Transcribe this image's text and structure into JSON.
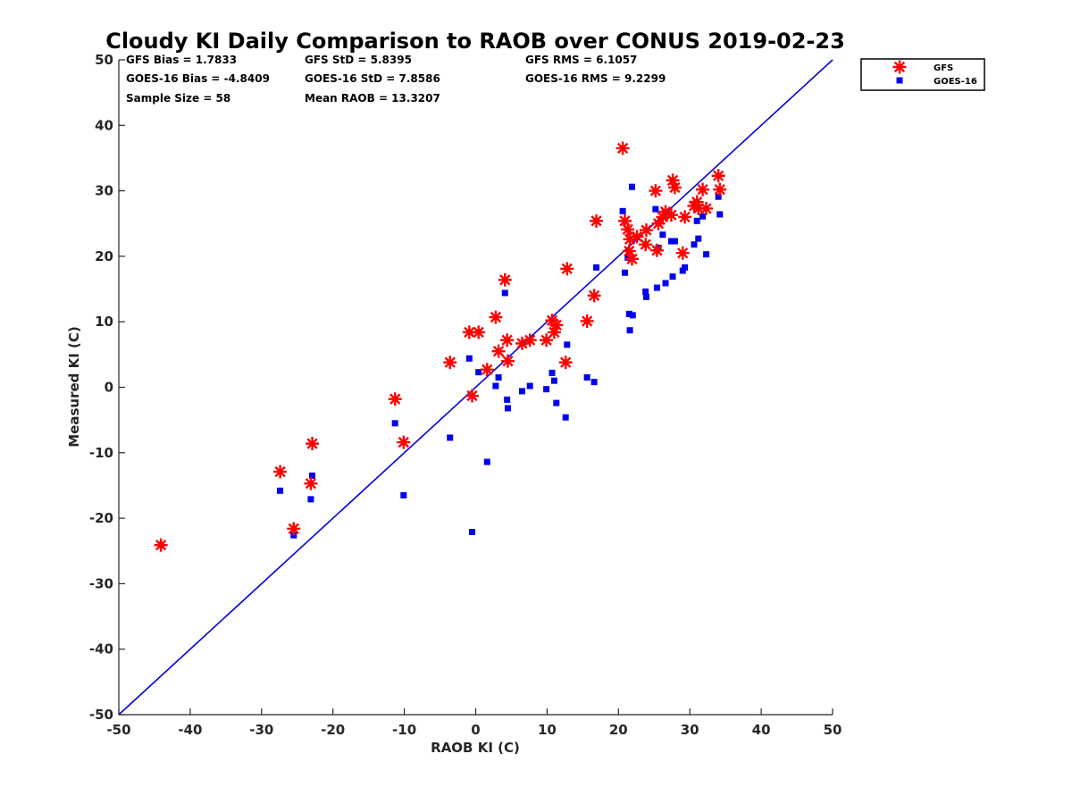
{
  "chart_data": {
    "type": "scatter",
    "title": "Cloudy KI Daily Comparison to RAOB over CONUS 2019-02-23",
    "xlabel": "RAOB KI (C)",
    "ylabel": "Measured KI (C)",
    "xlim": [
      -50,
      50
    ],
    "ylim": [
      -50,
      50
    ],
    "xticks": [
      "-50",
      "-40",
      "-30",
      "-20",
      "-10",
      "0",
      "10",
      "20",
      "30",
      "40",
      "50"
    ],
    "yticks": [
      "-50",
      "-40",
      "-30",
      "-20",
      "-10",
      "0",
      "10",
      "20",
      "30",
      "40",
      "50"
    ],
    "grid": false,
    "legend_position": "outside top-right",
    "stats": [
      "GFS Bias = 1.7833",
      "GFS StD = 5.8395",
      "GFS RMS = 6.1057",
      "GOES-16 Bias = -4.8409",
      "GOES-16 StD = 7.8586",
      "GOES-16 RMS = 9.2299",
      "Sample Size = 58",
      "Mean RAOB = 13.3207"
    ],
    "reference_line": {
      "type": "one-to-one",
      "color": "#0000dd"
    },
    "series": [
      {
        "name": "GFS",
        "marker": "asterisk",
        "color": "#ff0000",
        "points": [
          [
            -44.1,
            -24.1
          ],
          [
            -27.4,
            -12.9
          ],
          [
            -25.5,
            -21.6
          ],
          [
            -23.1,
            -14.7
          ],
          [
            -22.9,
            -8.6
          ],
          [
            -11.3,
            -1.8
          ],
          [
            -10.1,
            -8.4
          ],
          [
            -3.6,
            3.8
          ],
          [
            -0.9,
            8.4
          ],
          [
            -0.5,
            -1.3
          ],
          [
            0.4,
            8.4
          ],
          [
            1.6,
            2.7
          ],
          [
            2.8,
            10.7
          ],
          [
            3.2,
            5.5
          ],
          [
            4.1,
            16.4
          ],
          [
            4.4,
            7.2
          ],
          [
            4.5,
            4.0
          ],
          [
            6.5,
            6.7
          ],
          [
            7.6,
            7.2
          ],
          [
            9.9,
            7.2
          ],
          [
            10.7,
            10.2
          ],
          [
            11.0,
            8.4
          ],
          [
            11.3,
            9.5
          ],
          [
            12.6,
            3.8
          ],
          [
            12.8,
            18.1
          ],
          [
            15.6,
            10.1
          ],
          [
            16.6,
            14.0
          ],
          [
            16.9,
            25.4
          ],
          [
            20.6,
            36.5
          ],
          [
            20.9,
            25.4
          ],
          [
            21.3,
            24.1
          ],
          [
            21.5,
            20.8
          ],
          [
            21.6,
            22.6
          ],
          [
            21.9,
            19.6
          ],
          [
            22.6,
            23.0
          ],
          [
            23.8,
            21.8
          ],
          [
            23.9,
            24.0
          ],
          [
            25.2,
            30.0
          ],
          [
            25.4,
            20.9
          ],
          [
            25.6,
            25.0
          ],
          [
            26.2,
            26.0
          ],
          [
            26.6,
            26.8
          ],
          [
            27.4,
            26.3
          ],
          [
            27.6,
            31.6
          ],
          [
            27.9,
            30.5
          ],
          [
            29.0,
            20.5
          ],
          [
            29.3,
            26.0
          ],
          [
            30.6,
            27.7
          ],
          [
            31.0,
            28.3
          ],
          [
            31.2,
            27.3
          ],
          [
            31.8,
            30.2
          ],
          [
            32.3,
            27.3
          ],
          [
            34.0,
            32.3
          ],
          [
            34.2,
            30.2
          ]
        ]
      },
      {
        "name": "GOES-16",
        "marker": "square",
        "color": "#0000ee",
        "points": [
          [
            -44.1,
            -24.1
          ],
          [
            -27.4,
            -15.8
          ],
          [
            -25.5,
            -22.6
          ],
          [
            -23.1,
            -17.1
          ],
          [
            -22.9,
            -13.5
          ],
          [
            -11.3,
            -5.5
          ],
          [
            -10.1,
            -16.5
          ],
          [
            -3.6,
            -7.7
          ],
          [
            -0.9,
            4.4
          ],
          [
            -0.5,
            -22.1
          ],
          [
            0.4,
            2.3
          ],
          [
            1.6,
            -11.4
          ],
          [
            2.8,
            0.2
          ],
          [
            3.2,
            1.5
          ],
          [
            4.1,
            14.4
          ],
          [
            4.4,
            -1.9
          ],
          [
            4.5,
            -3.2
          ],
          [
            6.5,
            -0.6
          ],
          [
            7.6,
            0.2
          ],
          [
            9.9,
            -0.3
          ],
          [
            10.7,
            2.2
          ],
          [
            11.0,
            1.0
          ],
          [
            11.3,
            -2.4
          ],
          [
            12.6,
            -4.6
          ],
          [
            12.8,
            6.5
          ],
          [
            15.6,
            1.5
          ],
          [
            16.6,
            0.8
          ],
          [
            16.9,
            18.3
          ],
          [
            20.6,
            26.9
          ],
          [
            20.9,
            17.5
          ],
          [
            21.3,
            19.8
          ],
          [
            21.5,
            11.2
          ],
          [
            21.6,
            8.7
          ],
          [
            21.9,
            30.6
          ],
          [
            22.0,
            11.0
          ],
          [
            22.6,
            22.9
          ],
          [
            23.8,
            14.6
          ],
          [
            23.9,
            13.8
          ],
          [
            25.2,
            27.2
          ],
          [
            25.4,
            15.2
          ],
          [
            25.6,
            21.3
          ],
          [
            26.2,
            23.3
          ],
          [
            26.6,
            15.9
          ],
          [
            27.4,
            22.3
          ],
          [
            27.6,
            16.9
          ],
          [
            27.9,
            22.3
          ],
          [
            29.0,
            17.8
          ],
          [
            29.3,
            18.3
          ],
          [
            30.6,
            21.8
          ],
          [
            31.0,
            25.4
          ],
          [
            31.2,
            22.7
          ],
          [
            31.8,
            26.1
          ],
          [
            32.3,
            20.3
          ],
          [
            34.0,
            29.1
          ],
          [
            34.2,
            26.4
          ]
        ]
      }
    ]
  }
}
